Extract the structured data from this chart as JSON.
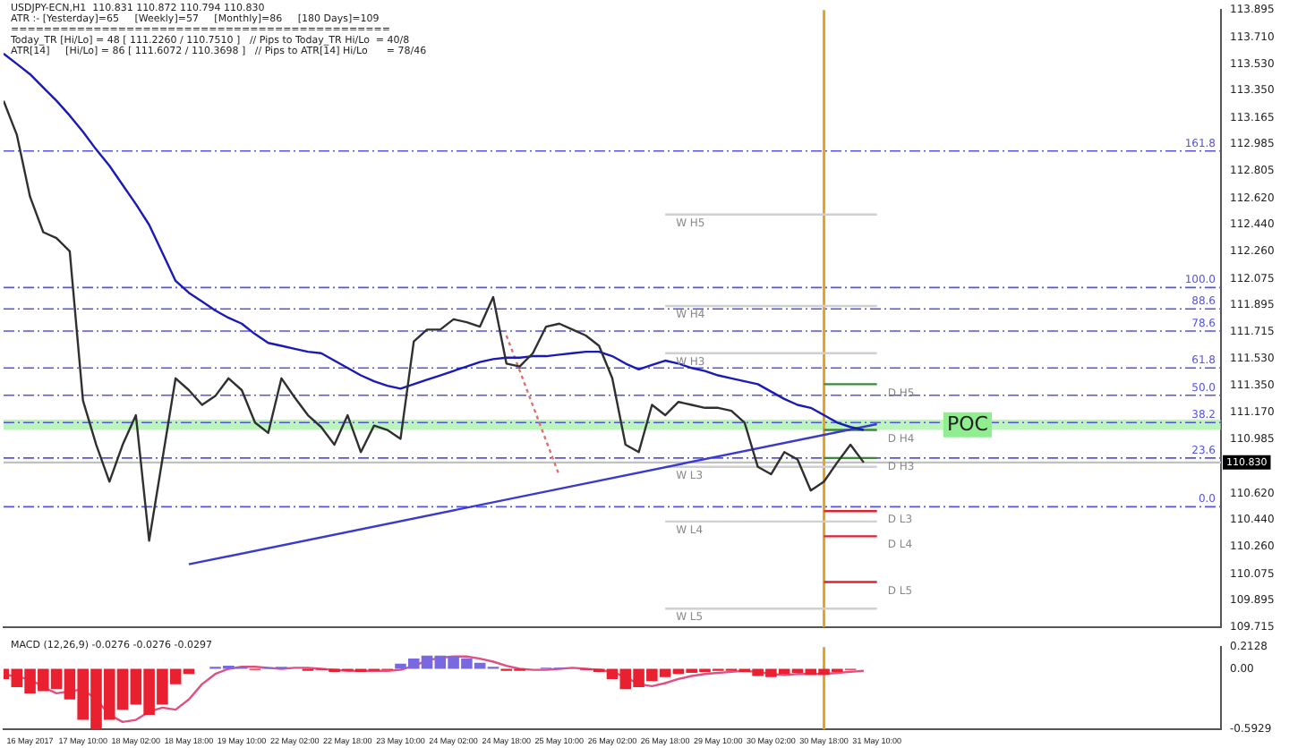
{
  "chart_data": [
    {
      "type": "line",
      "title": "USDJPY-ECN,H1  110.831 110.872 110.794 110.830",
      "annotations": [
        "ATR :- [Yesterday]=65     [Weekly]=57     [Monthly]=86     [180 Days]=109",
        "==============================================",
        "Today_TR [Hi/Lo] = 48 [ 111.2260 / 110.7510 ]   // Pips to Today_TR Hi/Lo  = 40/8",
        "ATR[14]     [Hi/Lo] = 86 [ 111.6072 / 110.3698 ]   // Pips to ATR[14] Hi/Lo      = 78/46",
        {
          "text": "W H5",
          "x": "26 May 18:00",
          "y": 112.51
        },
        {
          "text": "W H4",
          "x": "26 May 18:00",
          "y": 111.89
        },
        {
          "text": "W H3",
          "x": "26 May 18:00",
          "y": 111.57
        },
        {
          "text": "W L3",
          "x": "26 May 18:00",
          "y": 110.8
        },
        {
          "text": "W L4",
          "x": "26 May 18:00",
          "y": 110.43
        },
        {
          "text": "W L5",
          "x": "26 May 18:00",
          "y": 109.84
        },
        {
          "text": "D H5",
          "x": "31 May 10:00",
          "y": 111.36
        },
        {
          "text": "D H4",
          "x": "31 May 10:00",
          "y": 111.05
        },
        {
          "text": "D H3",
          "x": "31 May 10:00",
          "y": 110.86
        },
        {
          "text": "D L3",
          "x": "31 May 10:00",
          "y": 110.5
        },
        {
          "text": "D L4",
          "x": "31 May 10:00",
          "y": 110.33
        },
        {
          "text": "D L5",
          "x": "31 May 10:00",
          "y": 110.02
        },
        {
          "text": "161.8",
          "y": 112.94
        },
        {
          "text": "100.0",
          "y": 112.015
        },
        {
          "text": "88.6",
          "y": 111.87
        },
        {
          "text": "78.6",
          "y": 111.72
        },
        {
          "text": "61.8",
          "y": 111.47
        },
        {
          "text": "50.0",
          "y": 111.285
        },
        {
          "text": "38.2",
          "y": 111.1
        },
        {
          "text": "23.6",
          "y": 110.86
        },
        {
          "text": "0.0",
          "y": 110.53
        }
      ],
      "categories": [
        null,
        null,
        "16 May 2017",
        null,
        null,
        null,
        "17 May 10:00",
        null,
        null,
        null,
        "18 May 02:00",
        null,
        null,
        null,
        "18 May 18:00",
        null,
        null,
        null,
        "19 May 10:00",
        null,
        null,
        null,
        "22 May 02:00",
        null,
        null,
        null,
        "22 May 18:00",
        null,
        null,
        null,
        "23 May 10:00",
        null,
        null,
        null,
        "24 May 02:00",
        null,
        null,
        null,
        "24 May 18:00",
        null,
        null,
        null,
        "25 May 10:00",
        null,
        null,
        null,
        "26 May 02:00",
        null,
        null,
        null,
        "26 May 18:00",
        null,
        null,
        null,
        "29 May 10:00",
        null,
        null,
        null,
        "30 May 02:00",
        null,
        null,
        null,
        "30 May 18:00",
        null,
        null,
        null,
        "31 May 10:00",
        null,
        null,
        null,
        null,
        null,
        null,
        null,
        null,
        null,
        null,
        null,
        null,
        null,
        null,
        null,
        null,
        null,
        null,
        null,
        null,
        null,
        null,
        null,
        null,
        null,
        null
      ],
      "series": [
        {
          "color": "#303030",
          "values": [
            113.28,
            113.05,
            112.63,
            112.39,
            112.35,
            112.26,
            111.25,
            110.95,
            110.7,
            110.95,
            111.15,
            110.3,
            110.85,
            111.4,
            111.32,
            111.22,
            111.28,
            111.4,
            111.32,
            111.1,
            111.03,
            111.4,
            111.27,
            111.15,
            111.07,
            110.95,
            111.15,
            110.9,
            111.08,
            111.05,
            110.99,
            111.65,
            111.73,
            111.73,
            111.8,
            111.78,
            111.75,
            111.95,
            111.5,
            111.48,
            111.57,
            111.75,
            111.77,
            111.73,
            111.69,
            111.62,
            111.4,
            110.95,
            110.9,
            111.22,
            111.15,
            111.24,
            111.22,
            111.2,
            111.2,
            111.18,
            111.1,
            110.8,
            110.75,
            110.9,
            110.85,
            110.64,
            110.7,
            110.83,
            110.95,
            110.83,
            null,
            null,
            null,
            null,
            null,
            null,
            null,
            null,
            null,
            null,
            null,
            null,
            null,
            null,
            null,
            null,
            null,
            null,
            null,
            null,
            null,
            null,
            null,
            null,
            null,
            null,
            null
          ]
        },
        {
          "color": "#1a1ab8",
          "values": [
            113.6,
            113.53,
            113.46,
            113.37,
            113.28,
            113.18,
            113.07,
            112.95,
            112.84,
            112.71,
            112.58,
            112.44,
            112.25,
            112.06,
            111.98,
            111.92,
            111.86,
            111.81,
            111.77,
            111.7,
            111.64,
            111.62,
            111.6,
            111.58,
            111.57,
            111.52,
            111.47,
            111.42,
            111.38,
            111.35,
            111.33,
            111.36,
            111.39,
            111.42,
            111.45,
            111.48,
            111.51,
            111.53,
            111.54,
            111.54,
            111.55,
            111.55,
            111.56,
            111.57,
            111.58,
            111.58,
            111.55,
            111.5,
            111.46,
            111.49,
            111.52,
            111.5,
            111.47,
            111.45,
            111.42,
            111.4,
            111.38,
            111.36,
            111.31,
            111.26,
            111.22,
            111.2,
            111.15,
            111.1,
            111.07,
            111.05,
            null,
            null,
            null,
            null,
            null,
            null,
            null,
            null,
            null,
            null,
            null,
            null,
            null,
            null,
            null,
            null,
            null,
            null,
            null,
            null,
            null,
            null,
            null,
            null,
            null,
            null,
            null
          ]
        },
        {
          "color": "#3a3acc",
          "x": [
            "18 May 18:00",
            "31 May 10:00"
          ],
          "values": [
            110.14,
            111.09
          ]
        },
        {
          "color": "#e07070",
          "line_style": "dotted",
          "x": [
            "24 May 18:00",
            "25 May 10:00"
          ],
          "values": [
            111.69,
            110.74
          ]
        },
        {
          "color": "#d0d0d0",
          "x": [
            "26 May 18:00",
            "31 May 10:00"
          ],
          "values": [
            112.51,
            112.51
          ]
        },
        {
          "color": "#d0d0d0",
          "x": [
            "26 May 18:00",
            "31 May 10:00"
          ],
          "values": [
            111.89,
            111.89
          ]
        },
        {
          "color": "#d0d0d0",
          "x": [
            "26 May 18:00",
            "31 May 10:00"
          ],
          "values": [
            111.57,
            111.57
          ]
        },
        {
          "color": "#d0d0d0",
          "x": [
            "26 May 18:00",
            "31 May 10:00"
          ],
          "values": [
            110.8,
            110.8
          ]
        },
        {
          "color": "#d0d0d0",
          "x": [
            "26 May 18:00",
            "31 May 10:00"
          ],
          "values": [
            110.43,
            110.43
          ]
        },
        {
          "color": "#d0d0d0",
          "x": [
            "26 May 18:00",
            "31 May 10:00"
          ],
          "values": [
            109.84,
            109.84
          ]
        },
        {
          "color": "#3a8a3a",
          "x": [
            "30 May 18:00",
            "31 May 10:00"
          ],
          "values": [
            111.36,
            111.36
          ]
        },
        {
          "color": "#3a8a3a",
          "x": [
            "30 May 18:00",
            "31 May 10:00"
          ],
          "values": [
            111.05,
            111.05
          ]
        },
        {
          "color": "#3a8a3a",
          "x": [
            "30 May 18:00",
            "31 May 10:00"
          ],
          "values": [
            110.86,
            110.86
          ]
        },
        {
          "color": "#dd2233",
          "x": [
            "30 May 18:00",
            "31 May 10:00"
          ],
          "values": [
            110.5,
            110.5
          ]
        },
        {
          "color": "#dd2233",
          "x": [
            "30 May 18:00",
            "31 May 10:00"
          ],
          "values": [
            110.33,
            110.33
          ]
        },
        {
          "color": "#dd2233",
          "x": [
            "30 May 18:00",
            "31 May 10:00"
          ],
          "values": [
            110.02,
            110.02
          ]
        }
      ],
      "ref_lines": [
        {
          "axis": "y",
          "value": 112.94,
          "color": "#5555dd",
          "line_style": "dashed"
        },
        {
          "axis": "y",
          "value": 112.015,
          "color": "#5555dd",
          "line_style": "dashed"
        },
        {
          "axis": "y",
          "value": 111.87,
          "color": "#5555dd",
          "line_style": "dashed"
        },
        {
          "axis": "y",
          "value": 111.72,
          "color": "#5555dd",
          "line_style": "dashed"
        },
        {
          "axis": "y",
          "value": 111.47,
          "color": "#5555dd",
          "line_style": "dashed"
        },
        {
          "axis": "y",
          "value": 111.285,
          "color": "#5555dd",
          "line_style": "dashed"
        },
        {
          "axis": "y",
          "value": 111.1,
          "color": "#5555dd",
          "line_style": "dashed"
        },
        {
          "axis": "y",
          "value": 110.86,
          "color": "#5555dd",
          "line_style": "dashed"
        },
        {
          "axis": "y",
          "value": 110.53,
          "color": "#5555dd",
          "line_style": "dashed"
        },
        {
          "axis": "y",
          "value": 110.83,
          "label": "110.830",
          "color": "#c0c0c0",
          "line_style": "solid"
        },
        {
          "axis": "x",
          "value": "30 May 18:00",
          "color": "#f0a020",
          "line_style": "solid"
        }
      ],
      "bands": [
        {
          "axis": "y",
          "from": 111.05,
          "to": 111.12,
          "label": "POC",
          "color": "#90ee90"
        }
      ],
      "ylim": [
        109.715,
        113.895
      ],
      "yticks": [
        113.895,
        {
          "value": 113.71,
          "label": "113.710"
        },
        {
          "value": 113.53,
          "label": "113.530"
        },
        {
          "value": 113.35,
          "label": "113.350"
        },
        113.165,
        112.985,
        112.805,
        {
          "value": 112.62,
          "label": "112.620"
        },
        {
          "value": 112.44,
          "label": "112.440"
        },
        {
          "value": 112.26,
          "label": "112.260"
        },
        112.075,
        111.895,
        111.715,
        {
          "value": 111.53,
          "label": "111.530"
        },
        {
          "value": 111.35,
          "label": "111.350"
        },
        {
          "value": 111.17,
          "label": "111.170"
        },
        110.985,
        {
          "value": 110.62,
          "label": "110.620"
        },
        {
          "value": 110.44,
          "label": "110.440"
        },
        {
          "value": 110.26,
          "label": "110.260"
        },
        110.075,
        109.895,
        109.715
      ],
      "tick_labels": "y",
      "grid": false,
      "legend": false,
      "marker": "none"
    },
    {
      "type": "bar",
      "title": "MACD (12,26,9) -0.0276 -0.0276 -0.0297",
      "categories": [
        null,
        null,
        "16 May 2017",
        null,
        null,
        null,
        "17 May 10:00",
        null,
        null,
        null,
        "18 May 02:00",
        null,
        null,
        null,
        "18 May 18:00",
        null,
        null,
        null,
        "19 May 10:00",
        null,
        null,
        null,
        "22 May 02:00",
        null,
        null,
        null,
        "22 May 18:00",
        null,
        null,
        null,
        "23 May 10:00",
        null,
        null,
        null,
        "24 May 02:00",
        null,
        null,
        null,
        "24 May 18:00",
        null,
        null,
        null,
        "25 May 10:00",
        null,
        null,
        null,
        "26 May 02:00",
        null,
        null,
        null,
        "26 May 18:00",
        null,
        null,
        null,
        "29 May 10:00",
        null,
        null,
        null,
        "30 May 02:00",
        null,
        null,
        null,
        "30 May 18:00",
        null,
        null,
        null,
        "31 May 10:00",
        null,
        null,
        null,
        null,
        null,
        null,
        null,
        null,
        null,
        null,
        null,
        null,
        null,
        null,
        null,
        null,
        null,
        null,
        null,
        null,
        null,
        null,
        null,
        null,
        null,
        null
      ],
      "series": [
        {
          "type": "bar",
          "values": [
            -0.1,
            -0.18,
            -0.24,
            -0.22,
            -0.2,
            -0.3,
            -0.5,
            -0.59,
            -0.5,
            -0.4,
            -0.35,
            -0.45,
            -0.35,
            -0.15,
            -0.05,
            0,
            0.02,
            0.03,
            0.02,
            -0.01,
            0.01,
            0.02,
            0,
            -0.02,
            -0.01,
            -0.03,
            -0.02,
            -0.03,
            -0.02,
            -0.01,
            0.05,
            0.1,
            0.13,
            0.13,
            0.12,
            0.1,
            0.06,
            0.02,
            -0.02,
            -0.02,
            0,
            0.01,
            0.01,
            0,
            -0.01,
            -0.03,
            -0.1,
            -0.2,
            -0.18,
            -0.12,
            -0.08,
            -0.05,
            -0.04,
            -0.03,
            -0.02,
            -0.02,
            -0.03,
            -0.07,
            -0.08,
            -0.05,
            -0.04,
            -0.06,
            -0.06,
            -0.03,
            -0.01,
            0,
            null,
            null,
            null,
            null,
            null,
            null,
            null,
            null,
            null,
            null,
            null,
            null,
            null,
            null,
            null,
            null,
            null,
            null,
            null,
            null,
            null,
            null,
            null,
            null,
            null,
            null,
            null
          ],
          "colors": [
            "#e82030",
            "#e82030",
            "#e82030",
            "#e82030",
            "#e82030",
            "#e82030",
            "#e82030",
            "#e82030",
            "#e82030",
            "#e82030",
            "#e82030",
            "#e82030",
            "#e82030",
            "#e82030",
            "#e82030",
            "#e82030",
            "#7a68e0",
            "#7a68e0",
            "#7a68e0",
            "#e82030",
            "#7a68e0",
            "#7a68e0",
            "#e82030",
            "#e82030",
            "#e82030",
            "#e82030",
            "#e82030",
            "#e82030",
            "#e82030",
            "#e82030",
            "#7a68e0",
            "#7a68e0",
            "#7a68e0",
            "#7a68e0",
            "#7a68e0",
            "#7a68e0",
            "#7a68e0",
            "#7a68e0",
            "#e82030",
            "#e82030",
            "#e82030",
            "#7a68e0",
            "#7a68e0",
            "#e82030",
            "#e82030",
            "#e82030",
            "#e82030",
            "#e82030",
            "#e82030",
            "#e82030",
            "#e82030",
            "#e82030",
            "#e82030",
            "#e82030",
            "#e82030",
            "#e82030",
            "#e82030",
            "#e82030",
            "#e82030",
            "#e82030",
            "#e82030",
            "#e82030",
            "#e82030",
            "#e82030",
            "#e82030",
            "#e82030",
            "#e82030",
            "#e82030",
            "#e82030",
            "#e82030",
            "#e82030",
            "#e82030",
            "#e82030",
            "#e82030",
            "#e82030",
            "#e82030",
            "#e82030",
            "#e82030",
            "#e82030",
            "#e82030",
            "#e82030",
            "#e82030",
            "#e82030",
            "#e82030",
            "#e82030",
            "#e82030",
            "#e82030",
            "#e82030",
            "#e82030",
            "#e82030",
            "#e82030",
            "#e82030",
            "#e82030"
          ]
        },
        {
          "type": "line",
          "color": "#e05080",
          "values": [
            -0.05,
            -0.08,
            -0.1,
            -0.18,
            -0.24,
            -0.22,
            -0.2,
            -0.3,
            -0.45,
            -0.52,
            -0.5,
            -0.42,
            -0.38,
            -0.4,
            -0.3,
            -0.15,
            -0.05,
            0,
            0.02,
            0.02,
            0.01,
            0,
            0.01,
            0.01,
            0,
            -0.01,
            -0.02,
            -0.02,
            -0.02,
            -0.02,
            -0.01,
            0.03,
            0.08,
            0.11,
            0.12,
            0.12,
            0.1,
            0.07,
            0.03,
            0,
            -0.01,
            -0.01,
            0,
            0.01,
            0,
            -0.01,
            -0.03,
            -0.08,
            -0.15,
            -0.17,
            -0.14,
            -0.1,
            -0.07,
            -0.05,
            -0.04,
            -0.03,
            -0.02,
            -0.03,
            -0.05,
            -0.06,
            -0.05,
            -0.05,
            -0.05,
            -0.04,
            -0.03,
            -0.02,
            null,
            null,
            null,
            null,
            null,
            null,
            null,
            null,
            null,
            null,
            null,
            null,
            null,
            null,
            null,
            null,
            null,
            null,
            null,
            null,
            null,
            null,
            null,
            null,
            null,
            null,
            null
          ]
        }
      ],
      "ref_lines": [
        {
          "axis": "x",
          "value": "30 May 18:00",
          "color": "#f0a020",
          "line_style": "solid"
        }
      ],
      "ylim": [
        -0.5929,
        0.2128
      ],
      "yticks": [
        0.2128,
        {
          "value": 0,
          "label": "0.00"
        },
        -0.5929
      ],
      "grid": false,
      "legend": false,
      "marker": "none"
    }
  ]
}
